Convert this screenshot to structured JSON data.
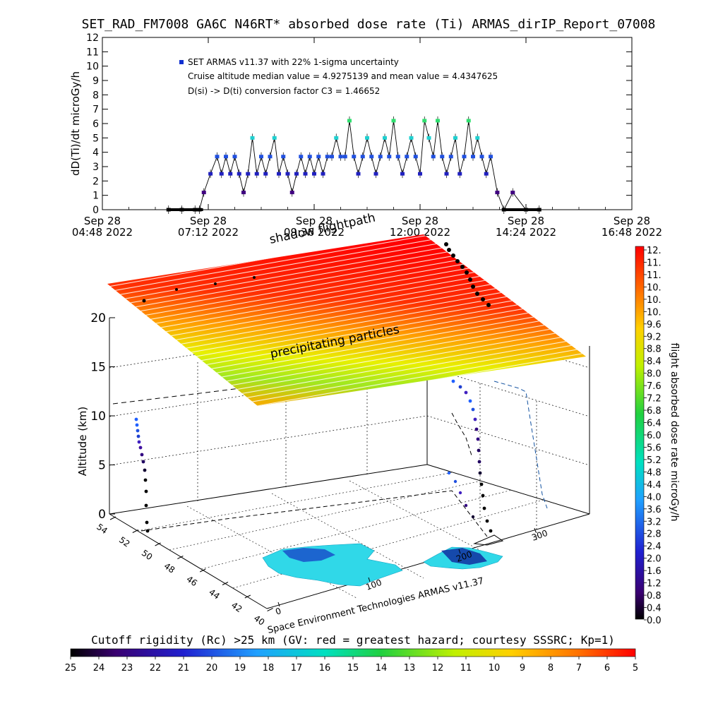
{
  "title": "SET_RAD_FM7008  GA6C N46RT* absorbed dose rate (Ti) ARMAS_dirIP_Report_07008",
  "top_chart": {
    "ylabel": "dD(Ti)/dt microGy/h",
    "legend": {
      "series_label": "SET ARMAS v11.37 with 22% 1-sigma uncertainty",
      "line2": "Cruise altitude median value = 4.9275139 and mean value = 4.4347625",
      "line3": "D(si) -> D(ti) conversion factor C3 = 1.46652"
    },
    "x_ticks": [
      {
        "line1": "Sep 28",
        "line2": "04:48 2022"
      },
      {
        "line1": "Sep 28",
        "line2": "07:12 2022"
      },
      {
        "line1": "Sep 28",
        "line2": "09:36 2022"
      },
      {
        "line1": "Sep 28",
        "line2": "12:00 2022"
      },
      {
        "line1": "Sep 28",
        "line2": "14:24 2022"
      },
      {
        "line1": "Sep 28",
        "line2": "16:48 2022"
      }
    ],
    "y_ticks": [
      "0",
      "1",
      "2",
      "3",
      "4",
      "5",
      "6",
      "7",
      "8",
      "9",
      "10",
      "11",
      "12"
    ]
  },
  "chart_data": {
    "type": "scatter",
    "title": "SET_RAD_FM7008  GA6C N46RT* absorbed dose rate (Ti) ARMAS_dirIP_Report_07008",
    "xlabel": "",
    "ylabel": "dD(Ti)/dt microGy/h",
    "x_hours_range": [
      4.8,
      16.8
    ],
    "ylim": [
      0,
      12
    ],
    "series": [
      {
        "name": "SET ARMAS v11.37 with 22% 1-sigma uncertainty",
        "x_hours": [
          6.3,
          6.6,
          6.9,
          7.0,
          7.1,
          7.25,
          7.4,
          7.5,
          7.6,
          7.7,
          7.8,
          7.9,
          8.0,
          8.1,
          8.2,
          8.3,
          8.4,
          8.5,
          8.6,
          8.7,
          8.8,
          8.9,
          9.0,
          9.1,
          9.2,
          9.3,
          9.4,
          9.5,
          9.6,
          9.7,
          9.8,
          9.9,
          10.0,
          10.1,
          10.2,
          10.3,
          10.4,
          10.5,
          10.6,
          10.7,
          10.8,
          10.9,
          11.0,
          11.1,
          11.2,
          11.3,
          11.4,
          11.5,
          11.6,
          11.7,
          11.8,
          11.9,
          12.0,
          12.1,
          12.2,
          12.3,
          12.4,
          12.5,
          12.6,
          12.7,
          12.8,
          12.9,
          13.0,
          13.1,
          13.2,
          13.3,
          13.4,
          13.5,
          13.6,
          13.75,
          13.9,
          14.1,
          14.4,
          14.7
        ],
        "y": [
          0,
          0,
          0,
          0,
          1.2,
          2.5,
          3.7,
          2.5,
          3.7,
          2.5,
          3.7,
          2.5,
          1.2,
          2.5,
          5.0,
          2.5,
          3.7,
          2.5,
          3.7,
          5.0,
          2.5,
          3.7,
          2.5,
          1.2,
          2.5,
          3.7,
          2.5,
          3.7,
          2.5,
          3.7,
          2.5,
          3.7,
          3.7,
          5.0,
          3.7,
          3.7,
          6.2,
          3.7,
          2.5,
          3.7,
          5.0,
          3.7,
          2.5,
          3.7,
          5.0,
          3.7,
          6.2,
          3.7,
          2.5,
          3.7,
          5.0,
          3.7,
          2.5,
          6.2,
          5.0,
          3.7,
          6.2,
          3.7,
          2.5,
          3.7,
          5.0,
          2.5,
          3.7,
          6.2,
          3.7,
          5.0,
          3.7,
          2.5,
          3.7,
          1.2,
          0,
          1.2,
          0,
          0
        ]
      }
    ],
    "lower_chart": {
      "type": "3d-flightpath",
      "zlabel": "Altitude (km)",
      "z_ticks": [
        "0",
        "5",
        "10",
        "15",
        "20"
      ],
      "lat_ticks": [
        "40",
        "42",
        "44",
        "46",
        "48",
        "50",
        "52",
        "54"
      ],
      "lon_ticks": [
        "0",
        "100",
        "200",
        "300"
      ],
      "annotations": [
        "shadow flightpath",
        "precipitating particles"
      ],
      "credit": "Space Environment Technologies ARMAS v11.37"
    },
    "colorbar_right": {
      "label": "flight absorbed dose rate microGy/h",
      "ticks": [
        "12.",
        "11.",
        "11.",
        "10.",
        "10.",
        "10.",
        "9.6",
        "9.2",
        "8.8",
        "8.4",
        "8.0",
        "7.6",
        "7.2",
        "6.8",
        "6.4",
        "6.0",
        "5.6",
        "5.2",
        "4.8",
        "4.4",
        "4.0",
        "3.6",
        "3.2",
        "2.8",
        "2.4",
        "2.0",
        "1.6",
        "1.2",
        "0.8",
        "0.4",
        "0.0"
      ]
    },
    "colorbar_bottom": {
      "label": "Cutoff rigidity (Rc) >25 km (GV: red = greatest hazard; courtesy SSSRC; Kp=1)",
      "ticks": [
        "25",
        "24",
        "23",
        "22",
        "21",
        "20",
        "19",
        "18",
        "17",
        "16",
        "15",
        "14",
        "13",
        "12",
        "11",
        "10",
        "9",
        "8",
        "7",
        "6",
        "5"
      ]
    }
  }
}
